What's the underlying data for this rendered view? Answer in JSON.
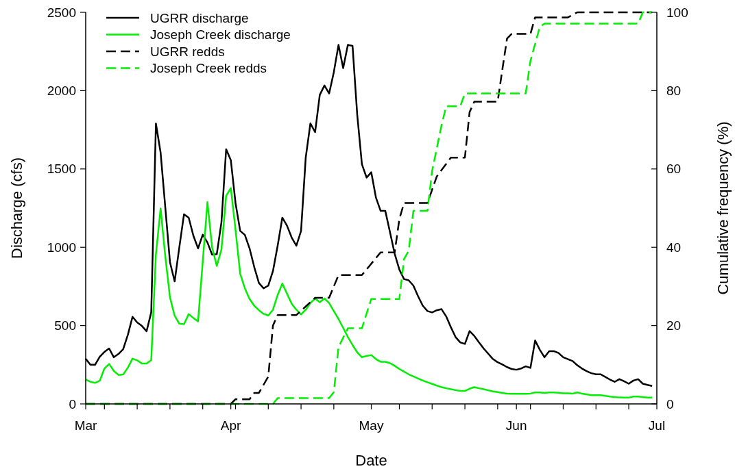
{
  "chart_data": {
    "type": "line",
    "xlabel": "Date",
    "ylabel": "Discharge (cfs)",
    "y2label": "Cumulative frequency (%)",
    "x": [
      "--03-01",
      "--03-02",
      "--03-03",
      "--03-04",
      "--03-05",
      "--03-06",
      "--03-07",
      "--03-08",
      "--03-09",
      "--03-10",
      "--03-11",
      "--03-12",
      "--03-13",
      "--03-14",
      "--03-15",
      "--03-16",
      "--03-17",
      "--03-18",
      "--03-19",
      "--03-20",
      "--03-21",
      "--03-22",
      "--03-23",
      "--03-24",
      "--03-25",
      "--03-26",
      "--03-27",
      "--03-28",
      "--03-29",
      "--03-30",
      "--03-31",
      "--04-01",
      "--04-02",
      "--04-03",
      "--04-04",
      "--04-05",
      "--04-06",
      "--04-07",
      "--04-08",
      "--04-09",
      "--04-10",
      "--04-11",
      "--04-12",
      "--04-13",
      "--04-14",
      "--04-15",
      "--04-16",
      "--04-17",
      "--04-18",
      "--04-19",
      "--04-20",
      "--04-21",
      "--04-22",
      "--04-23",
      "--04-24",
      "--04-25",
      "--04-26",
      "--04-27",
      "--04-28",
      "--04-29",
      "--04-30",
      "--05-01",
      "--05-02",
      "--05-03",
      "--05-04",
      "--05-05",
      "--05-06",
      "--05-07",
      "--05-08",
      "--05-09",
      "--05-10",
      "--05-11",
      "--05-12",
      "--05-13",
      "--05-14",
      "--05-15",
      "--05-16",
      "--05-17",
      "--05-18",
      "--05-19",
      "--05-20",
      "--05-21",
      "--05-22",
      "--05-23",
      "--05-24",
      "--05-25",
      "--05-26",
      "--05-27",
      "--05-28",
      "--05-29",
      "--05-30",
      "--05-31",
      "--06-01",
      "--06-02",
      "--06-03",
      "--06-04",
      "--06-05",
      "--06-06",
      "--06-07",
      "--06-08",
      "--06-09",
      "--06-10",
      "--06-11",
      "--06-12",
      "--06-13",
      "--06-14",
      "--06-15",
      "--06-16",
      "--06-17",
      "--06-18",
      "--06-19",
      "--06-20",
      "--06-21",
      "--06-22",
      "--06-23",
      "--06-24",
      "--06-25",
      "--06-26",
      "--06-27",
      "--06-28",
      "--06-29",
      "--06-30"
    ],
    "series": [
      {
        "name": "UGRR discharge",
        "color": "#000000",
        "line_style": "solid",
        "values": [
          288,
          250,
          250,
          301,
          332,
          354,
          298,
          319,
          349,
          441,
          556,
          520,
          498,
          464,
          585,
          1790,
          1604,
          1255,
          905,
          782,
          1000,
          1211,
          1189,
          1074,
          993,
          1080,
          1031,
          953,
          956,
          1161,
          1626,
          1556,
          1283,
          1104,
          1079,
          993,
          874,
          772,
          738,
          755,
          848,
          1010,
          1189,
          1138,
          1062,
          1010,
          1104,
          1573,
          1791,
          1735,
          1973,
          2033,
          1982,
          2118,
          2292,
          2144,
          2292,
          2286,
          1846,
          1530,
          1445,
          1479,
          1317,
          1232,
          1232,
          1096,
          959,
          857,
          797,
          789,
          755,
          687,
          627,
          593,
          584,
          598,
          605,
          559,
          490,
          427,
          393,
          383,
          465,
          434,
          393,
          354,
          320,
          286,
          266,
          252,
          235,
          223,
          218,
          226,
          240,
          230,
          405,
          346,
          298,
          337,
          337,
          325,
          298,
          286,
          274,
          247,
          226,
          209,
          196,
          189,
          189,
          172,
          155,
          141,
          158,
          145,
          129,
          149,
          158,
          129,
          121,
          115
        ]
      },
      {
        "name": "Joseph Creek discharge",
        "color": "#00ee00",
        "line_style": "solid",
        "values": [
          156,
          141,
          134,
          148,
          226,
          255,
          211,
          185,
          188,
          231,
          289,
          278,
          258,
          258,
          280,
          956,
          1248,
          942,
          680,
          563,
          512,
          509,
          573,
          549,
          527,
          908,
          1288,
          1000,
          881,
          986,
          1328,
          1378,
          1113,
          831,
          738,
          670,
          627,
          598,
          575,
          564,
          601,
          695,
          768,
          704,
          639,
          601,
          571,
          601,
          644,
          673,
          649,
          673,
          644,
          593,
          542,
          485,
          427,
          376,
          329,
          298,
          306,
          312,
          286,
          269,
          269,
          260,
          243,
          223,
          206,
          189,
          175,
          162,
          149,
          138,
          128,
          117,
          107,
          100,
          94,
          88,
          83,
          83,
          97,
          107,
          100,
          94,
          87,
          80,
          75,
          70,
          66,
          64,
          64,
          64,
          64,
          66,
          73,
          73,
          70,
          73,
          73,
          71,
          68,
          68,
          66,
          73,
          66,
          61,
          56,
          56,
          56,
          51,
          47,
          44,
          41,
          40,
          40,
          47,
          47,
          44,
          40,
          40
        ]
      },
      {
        "name": "UGRR redds",
        "color": "#000000",
        "line_style": "dashed",
        "axis": "y2",
        "x": [
          "--03-01",
          "--04-01",
          "--04-02",
          "--04-05",
          "--04-06",
          "--04-07",
          "--04-09",
          "--04-10",
          "--04-11",
          "--04-15",
          "--04-19",
          "--04-22",
          "--04-24",
          "--04-29",
          "--05-03",
          "--05-06",
          "--05-07",
          "--05-08",
          "--05-13",
          "--05-15",
          "--05-18",
          "--05-21",
          "--05-22",
          "--05-23",
          "--05-28",
          "--05-29",
          "--05-30",
          "--05-31",
          "--06-04",
          "--06-05",
          "--06-12",
          "--06-14",
          "--06-30"
        ],
        "values": [
          0,
          0,
          1.2,
          1.2,
          2.8,
          2.8,
          7,
          20,
          22.7,
          22.7,
          27.1,
          27.1,
          32.9,
          32.9,
          38.7,
          38.7,
          47.2,
          51.3,
          51.3,
          58.1,
          62.9,
          62.9,
          74.5,
          77.2,
          77.2,
          85.4,
          93.3,
          94.5,
          94.5,
          98.7,
          98.7,
          100,
          100
        ]
      },
      {
        "name": "Joseph Creek redds",
        "color": "#00ee00",
        "line_style": "dashed",
        "axis": "y2",
        "x": [
          "--03-01",
          "--04-10",
          "--04-11",
          "--04-22",
          "--04-23",
          "--04-24",
          "--04-26",
          "--04-29",
          "--05-01",
          "--05-07",
          "--05-08",
          "--05-09",
          "--05-10",
          "--05-13",
          "--05-14",
          "--05-16",
          "--05-17",
          "--05-20",
          "--05-21",
          "--06-03",
          "--06-04",
          "--06-06",
          "--06-07",
          "--06-27",
          "--06-28",
          "--06-30"
        ],
        "values": [
          0,
          0,
          1.5,
          1.5,
          3,
          14.5,
          19.3,
          19.3,
          26.8,
          26.8,
          37,
          39.1,
          49.3,
          49.3,
          59.5,
          71.1,
          76,
          76,
          79.3,
          79.3,
          87.6,
          96.3,
          97.1,
          97.1,
          100,
          100
        ]
      }
    ],
    "xlim": [
      "--03-01",
      "--07-01"
    ],
    "xticks": [
      {
        "value": "--03-01",
        "label": "Mar"
      },
      {
        "value": "--03-05",
        "label": null
      },
      {
        "value": "--03-12",
        "label": null
      },
      {
        "value": "--03-19",
        "label": null
      },
      {
        "value": "--03-26",
        "label": null
      },
      {
        "value": "--04-01",
        "label": "Apr"
      },
      {
        "value": "--04-02",
        "label": null
      },
      {
        "value": "--04-09",
        "label": null
      },
      {
        "value": "--04-16",
        "label": null
      },
      {
        "value": "--04-23",
        "label": null
      },
      {
        "value": "--05-01",
        "label": "May"
      },
      {
        "value": "--05-07",
        "label": null
      },
      {
        "value": "--05-14",
        "label": null
      },
      {
        "value": "--05-21",
        "label": null
      },
      {
        "value": "--05-28",
        "label": null
      },
      {
        "value": "--06-01",
        "label": "Jun"
      },
      {
        "value": "--06-04",
        "label": null
      },
      {
        "value": "--06-11",
        "label": null
      },
      {
        "value": "--06-18",
        "label": null
      },
      {
        "value": "--06-25",
        "label": null
      },
      {
        "value": "--07-01",
        "label": "Jul"
      }
    ],
    "ylim": [
      0,
      2500
    ],
    "yticks": [
      0,
      500,
      1000,
      1500,
      2000,
      2500
    ],
    "y2lim": [
      0,
      100
    ],
    "y2ticks": [
      0,
      20,
      40,
      60,
      80,
      100
    ],
    "grid": false,
    "legend": "top left"
  }
}
